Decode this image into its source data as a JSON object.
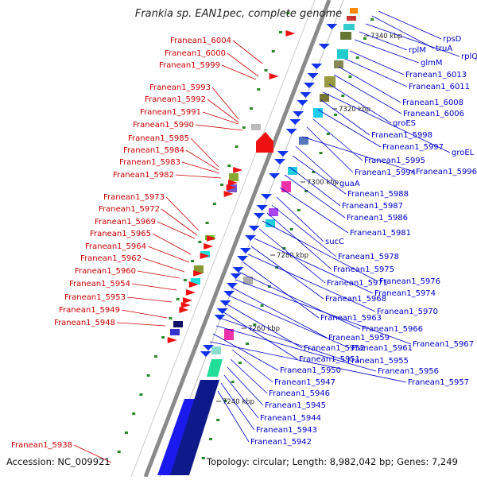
{
  "title": "Frankia sp. EAN1pec, complete genome",
  "footer": {
    "accession": "Accession: NC_009921",
    "summary": "Topology: circular; Length: 8,982,042 bp; Genes: 7,249"
  },
  "colors": {
    "left_label": "#cc0000",
    "right_label": "#0000cc",
    "backbone": "#8a8a8a",
    "strand_line": "#aaaaaa",
    "tick_dot": "#2a8a2a"
  },
  "kbp_ticks": [
    "7340 kbp",
    "7320 kbp",
    "7300 kbp",
    "7280 kbp",
    "7260 kbp",
    "7240 kbp"
  ],
  "left_labels": [
    "Franean1_6004",
    "Franean1_6000",
    "Franean1_5999",
    "Franean1_5993",
    "Franean1_5992",
    "Franean1_5991",
    "Franean1_5990",
    "Franean1_5985",
    "Franean1_5984",
    "Franean1_5983",
    "Franean1_5982",
    "Franean1_5973",
    "Franean1_5972",
    "Franean1_5969",
    "Franean1_5965",
    "Franean1_5964",
    "Franean1_5962",
    "Franean1_5960",
    "Franean1_5954",
    "Franean1_5953",
    "Franean1_5949",
    "Franean1_5948",
    "Franean1_5938"
  ],
  "right_labels": [
    "rpsD",
    "truA",
    "rplQ",
    "rplM",
    "glmM",
    "Franean1_6013",
    "Franean1_6011",
    "Franean1_6008",
    "Franean1_6006",
    "groES",
    "groEL",
    "Franean1_5998",
    "Franean1_5997",
    "Franean1_5995",
    "Franean1_5994",
    "Franean1_5996",
    "guaA",
    "Franean1_5988",
    "Franean1_5987",
    "Franean1_5986",
    "Franean1_5981",
    "sucC",
    "Franean1_5978",
    "Franean1_5975",
    "Franean1_5976",
    "Franean1_5971",
    "Franean1_5974",
    "Franean1_5968",
    "Franean1_5970",
    "Franean1_5963",
    "Franean1_5966",
    "Franean1_5967",
    "Franean1_5959",
    "Franean1_5961",
    "Franean1_5952",
    "Franean1_5951",
    "Franean1_5955",
    "Franean1_5956",
    "Franean1_5950",
    "Franean1_5957",
    "Franean1_5947",
    "Franean1_5946",
    "Franean1_5945",
    "Franean1_5944",
    "Franean1_5943",
    "Franean1_5942"
  ]
}
